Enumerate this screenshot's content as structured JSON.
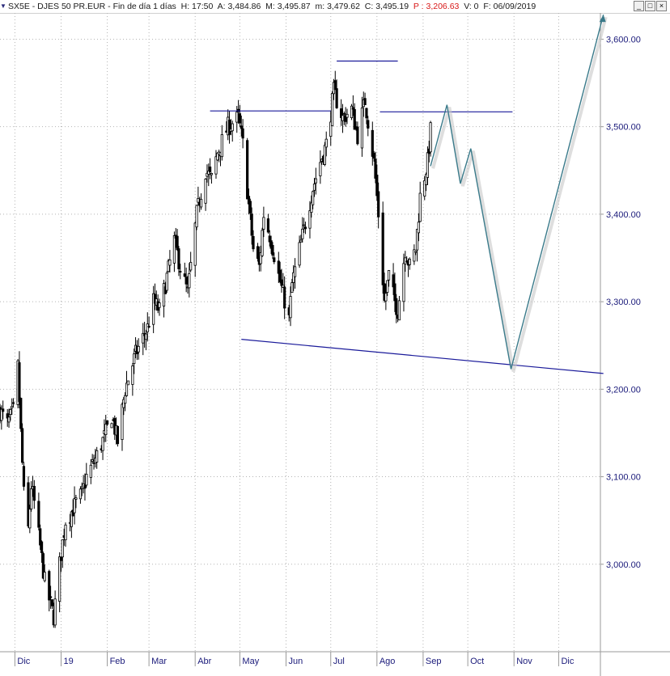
{
  "header": {
    "symbol": "SX5E - DJES 50 PR.EUR",
    "period": "Fin de día 1 días",
    "h_label": "H:",
    "h_value": "17:50",
    "a_label": "A:",
    "a_value": "3,484.86",
    "m_label": "M:",
    "m_value": "3,495.87",
    "min_label": "m:",
    "min_value": "3,479.62",
    "c_label": "C:",
    "c_value": "3,495.19",
    "p_label": "P :",
    "p_value": "3,206.63",
    "v_label": "V:",
    "v_value": "0",
    "f_label": "F:",
    "f_value": "06/09/2019"
  },
  "window_buttons": [
    "_",
    "□",
    "×"
  ],
  "colors": {
    "candles": "#000000",
    "axis_text": "#1a1a7a",
    "trendlines": "#1a1a9a",
    "projection": "#3a7a8a",
    "grid": "#b4b4b4",
    "price_red": "#d81818"
  },
  "chart_data": {
    "type": "candlestick",
    "title": "SX5E - DJES 50 PR.EUR",
    "y_ticks": [
      "3,000.00",
      "3,100.00",
      "3,200.00",
      "3,300.00",
      "3,400.00",
      "3,500.00",
      "3,600.00"
    ],
    "y_tick_values": [
      3000,
      3100,
      3200,
      3300,
      3400,
      3500,
      3600
    ],
    "ylim": [
      2900,
      3630
    ],
    "x_labels": [
      "Dic",
      "19",
      "Feb",
      "Mar",
      "Abr",
      "May",
      "Jun",
      "Jul",
      "Ago",
      "Sep",
      "Oct",
      "Nov",
      "Dic"
    ],
    "x_label_dates": [
      "2018-12-01",
      "2019-01-01",
      "2019-02-01",
      "2019-03-01",
      "2019-04-01",
      "2019-05-01",
      "2019-06-01",
      "2019-07-01",
      "2019-08-01",
      "2019-09-01",
      "2019-10-01",
      "2019-11-01",
      "2019-12-01"
    ],
    "xlim": [
      "2018-11-21",
      "2019-12-29"
    ],
    "grid": true,
    "price_path": [
      [
        "2018-11-21",
        3175
      ],
      [
        "2018-11-26",
        3160
      ],
      [
        "2018-11-30",
        3175
      ],
      [
        "2018-12-03",
        3225
      ],
      [
        "2018-12-05",
        3150
      ],
      [
        "2018-12-07",
        3080
      ],
      [
        "2018-12-10",
        3040
      ],
      [
        "2018-12-12",
        3090
      ],
      [
        "2018-12-14",
        3070
      ],
      [
        "2018-12-18",
        3020
      ],
      [
        "2018-12-21",
        2980
      ],
      [
        "2018-12-24",
        2960
      ],
      [
        "2018-12-27",
        2940
      ],
      [
        "2018-12-31",
        3000
      ],
      [
        "2019-01-04",
        3050
      ],
      [
        "2019-01-08",
        3060
      ],
      [
        "2019-01-11",
        3070
      ],
      [
        "2019-01-15",
        3080
      ],
      [
        "2019-01-18",
        3100
      ],
      [
        "2019-01-24",
        3120
      ],
      [
        "2019-01-31",
        3150
      ],
      [
        "2019-02-04",
        3170
      ],
      [
        "2019-02-08",
        3140
      ],
      [
        "2019-02-13",
        3200
      ],
      [
        "2019-02-20",
        3240
      ],
      [
        "2019-02-28",
        3270
      ],
      [
        "2019-03-04",
        3300
      ],
      [
        "2019-03-08",
        3290
      ],
      [
        "2019-03-12",
        3320
      ],
      [
        "2019-03-18",
        3370
      ],
      [
        "2019-03-22",
        3340
      ],
      [
        "2019-03-27",
        3310
      ],
      [
        "2019-04-02",
        3400
      ],
      [
        "2019-04-08",
        3450
      ],
      [
        "2019-04-12",
        3440
      ],
      [
        "2019-04-16",
        3470
      ],
      [
        "2019-04-23",
        3500
      ],
      [
        "2019-04-30",
        3510
      ],
      [
        "2019-05-03",
        3480
      ],
      [
        "2019-05-07",
        3410
      ],
      [
        "2019-05-10",
        3360
      ],
      [
        "2019-05-14",
        3340
      ],
      [
        "2019-05-17",
        3400
      ],
      [
        "2019-05-22",
        3370
      ],
      [
        "2019-05-27",
        3330
      ],
      [
        "2019-06-03",
        3280
      ],
      [
        "2019-06-05",
        3320
      ],
      [
        "2019-06-10",
        3360
      ],
      [
        "2019-06-14",
        3390
      ],
      [
        "2019-06-19",
        3430
      ],
      [
        "2019-06-24",
        3460
      ],
      [
        "2019-06-28",
        3480
      ],
      [
        "2019-07-03",
        3540
      ],
      [
        "2019-07-09",
        3510
      ],
      [
        "2019-07-15",
        3520
      ],
      [
        "2019-07-19",
        3490
      ],
      [
        "2019-07-24",
        3530
      ],
      [
        "2019-07-30",
        3460
      ],
      [
        "2019-08-02",
        3400
      ],
      [
        "2019-08-06",
        3300
      ],
      [
        "2019-08-09",
        3330
      ],
      [
        "2019-08-13",
        3300
      ],
      [
        "2019-08-15",
        3290
      ],
      [
        "2019-08-20",
        3360
      ],
      [
        "2019-08-23",
        3340
      ],
      [
        "2019-08-27",
        3360
      ],
      [
        "2019-08-30",
        3420
      ],
      [
        "2019-09-04",
        3460
      ],
      [
        "2019-09-06",
        3495
      ]
    ],
    "annotations": {
      "resistance_lines": [
        {
          "from": [
            "2019-04-11",
            3518
          ],
          "to": [
            "2019-07-01",
            3518
          ]
        },
        {
          "from": [
            "2019-07-05",
            3575
          ],
          "to": [
            "2019-08-15",
            3575
          ]
        },
        {
          "from": [
            "2019-08-03",
            3517
          ],
          "to": [
            "2019-10-31",
            3517
          ]
        }
      ],
      "support_line": {
        "from": [
          "2019-05-02",
          3257
        ],
        "to": [
          "2019-12-31",
          3218
        ]
      },
      "projection_path": [
        [
          "2019-09-06",
          3455
        ],
        [
          "2019-09-17",
          3525
        ],
        [
          "2019-09-26",
          3435
        ],
        [
          "2019-10-03",
          3475
        ],
        [
          "2019-10-30",
          3223
        ],
        [
          "2019-12-31",
          3628
        ]
      ]
    }
  }
}
